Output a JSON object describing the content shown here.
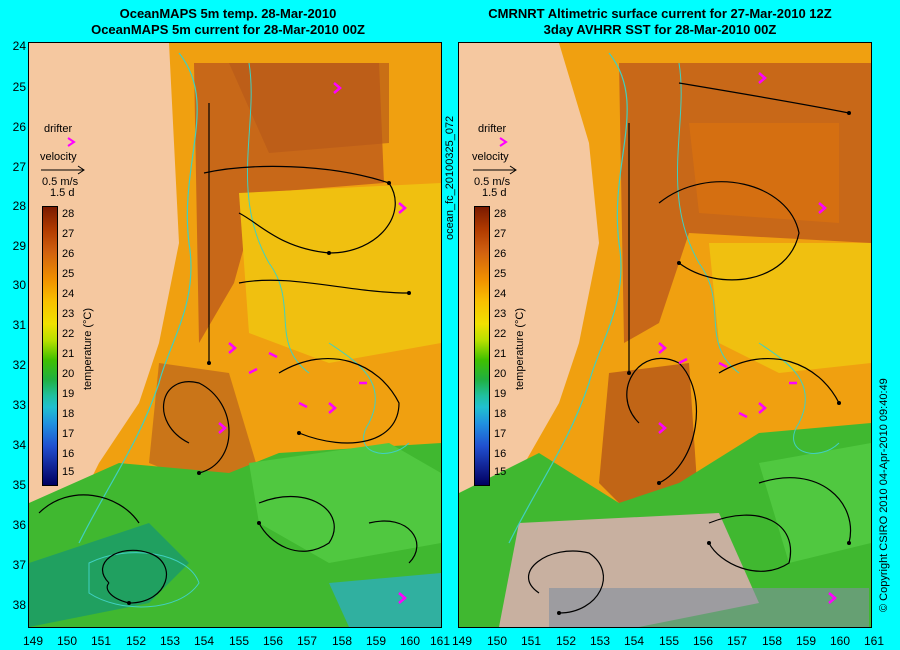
{
  "left_panel": {
    "title_line1": "OceanMAPS 5m temp. 28-Mar-2010",
    "title_line2": "OceanMAPS 5m current for 28-Mar-2010 00Z"
  },
  "right_panel": {
    "title_line1": "CMRNRT Altimetric surface current for 27-Mar-2010 12Z",
    "title_line2": "3day AVHRR SST for 28-Mar-2010 00Z"
  },
  "latitude_labels": [
    "24",
    "25",
    "26",
    "27",
    "28",
    "29",
    "30",
    "31",
    "32",
    "33",
    "34",
    "35",
    "36",
    "37",
    "38"
  ],
  "longitude_labels_left": [
    "149",
    "150",
    "151",
    "152",
    "153",
    "154",
    "155",
    "156",
    "157",
    "158",
    "159",
    "160",
    "161"
  ],
  "longitude_labels_right": [
    "149",
    "150",
    "151",
    "152",
    "153",
    "154",
    "155",
    "156",
    "157",
    "158",
    "159",
    "160",
    "161"
  ],
  "legend": {
    "drifter_label": "drifter",
    "velocity_label": "velocity",
    "speed_label": "0.5 m/s",
    "duration_label": "1.5 d",
    "colorbar_title": "temperature (°C)",
    "colorbar_ticks": [
      "28",
      "27",
      "26",
      "25",
      "24",
      "23",
      "22",
      "21",
      "20",
      "19",
      "18",
      "17",
      "16",
      "15"
    ]
  },
  "side_text": {
    "run_id": "ocean_fc_20100325_072",
    "copyright": "© Copyright CSIRO 2010   04-Apr-2010 09:40:49"
  },
  "colors": {
    "land": "#f5c8a0",
    "warm": "#e8900a",
    "hot": "#c86818",
    "cool": "#40c030",
    "contour": "#40d0c0",
    "drifter": "#ff00ff",
    "background": "#00ffff"
  }
}
